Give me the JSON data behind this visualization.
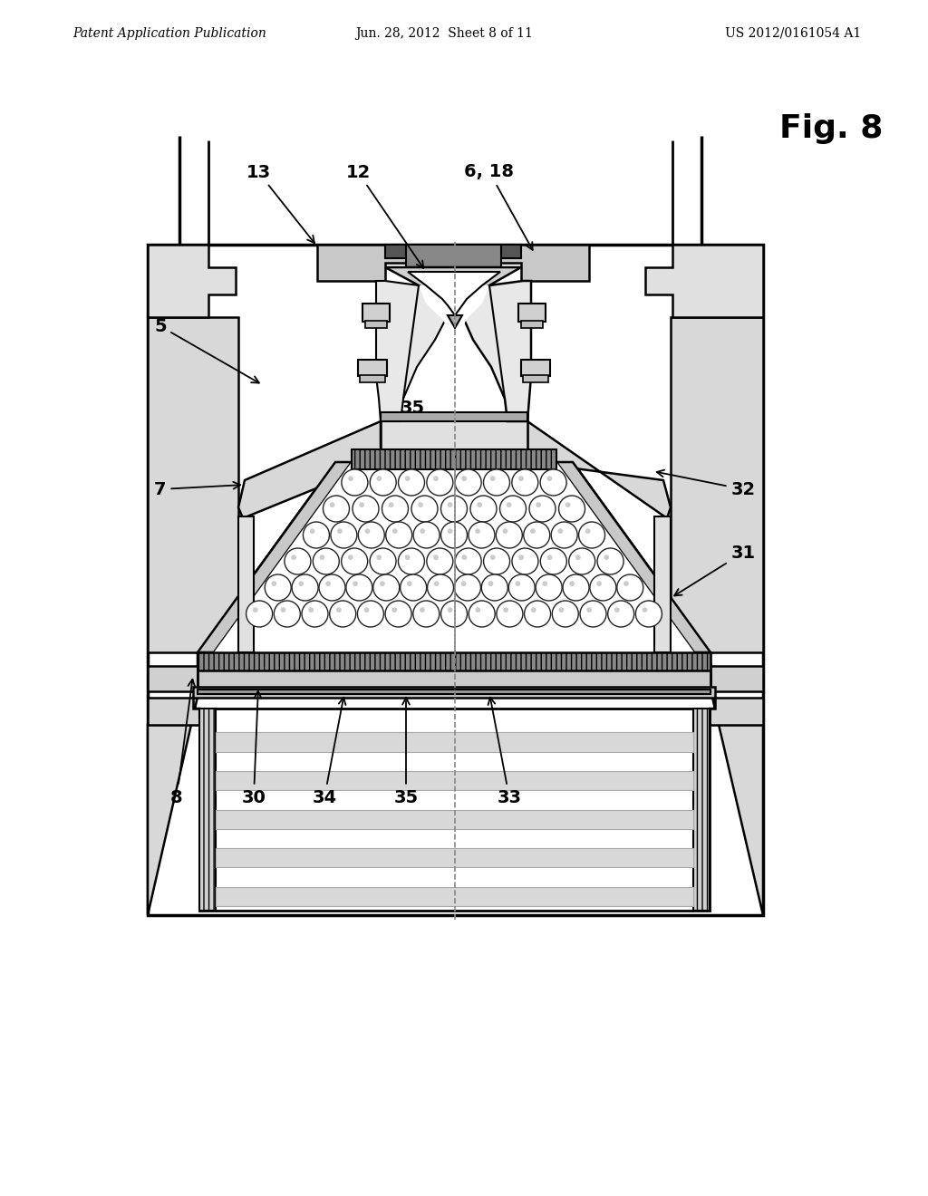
{
  "header_left": "Patent Application Publication",
  "header_center": "Jun. 28, 2012  Sheet 8 of 11",
  "header_right": "US 2012/0161054 A1",
  "fig_label": "Fig. 8",
  "background_color": "#ffffff"
}
